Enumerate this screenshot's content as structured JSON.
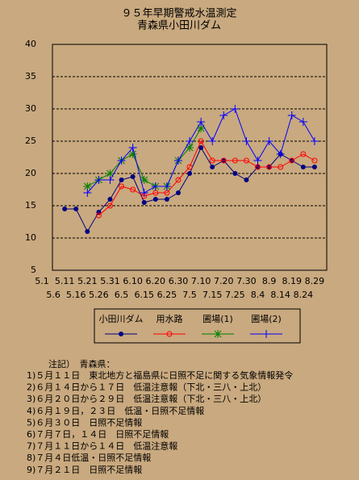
{
  "chart_data": {
    "type": "line",
    "title": "９５年早期警戒水温測定",
    "subtitle": "青森県小田川ダム",
    "categories": [
      "5.1",
      "5.6",
      "5.11",
      "5.16",
      "5.21",
      "5.26",
      "5.31",
      "6.5",
      "6.10",
      "6.15",
      "6.20",
      "6.25",
      "6.30",
      "7.5",
      "7.10",
      "7.15",
      "7.20",
      "7.25",
      "7.30",
      "8.4",
      "8.9",
      "8.14",
      "8.19",
      "8.24",
      "8.29"
    ],
    "series": [
      {
        "name": "小田川ダム",
        "color": "#000080",
        "marker": "dot",
        "values": [
          null,
          null,
          14.5,
          14.5,
          11,
          14,
          16,
          19,
          19.5,
          15.5,
          16,
          16,
          17,
          20,
          24,
          21,
          22,
          20,
          19,
          21,
          21,
          23,
          22,
          21,
          21
        ]
      },
      {
        "name": "用水路",
        "color": "#ff0000",
        "marker": "circle",
        "values": [
          null,
          null,
          null,
          null,
          null,
          13.5,
          15,
          18,
          17.5,
          16.5,
          17,
          17,
          19,
          21,
          25,
          22,
          22,
          22,
          22,
          21,
          21,
          21,
          22,
          23,
          22
        ]
      },
      {
        "name": "圃場(1)",
        "color": "#008000",
        "marker": "asterisk",
        "values": [
          null,
          null,
          null,
          null,
          18,
          19,
          20,
          22,
          23,
          19,
          18,
          18,
          22,
          24,
          27,
          null,
          null,
          null,
          null,
          null,
          null,
          null,
          null,
          null,
          null
        ]
      },
      {
        "name": "圃場(2)",
        "color": "#0000ff",
        "marker": "plus",
        "values": [
          null,
          null,
          null,
          null,
          17,
          19,
          19,
          22,
          24,
          17,
          18,
          18,
          22,
          25,
          28,
          25,
          29,
          30,
          25,
          22,
          25,
          23,
          29,
          28,
          25
        ]
      }
    ],
    "ylim": [
      5,
      40
    ],
    "yticks": [
      5,
      10,
      15,
      20,
      25,
      30,
      35,
      40
    ],
    "grid": true
  },
  "notes": {
    "heading": "注記）　青森県：",
    "lines": [
      "1)５月１１日　東北地方と福島県に日照不足に関する気象情報発令",
      "2)６月１４日から１７日　低温注意報（下北・三八・上北）",
      "3)６月２０日から２９日　低温注意報（下北・三八・上北）",
      "4)６月１９日，２３日　低温・日照不足情報",
      "5)６月３０日　日照不足情報",
      "6)７月７日，１４日　日照不足情報",
      "7)７月１１日から１４日　低温注意報",
      "8)７月４日低温・日照不足情報",
      "9)７月２１日　日照不足情報"
    ]
  }
}
